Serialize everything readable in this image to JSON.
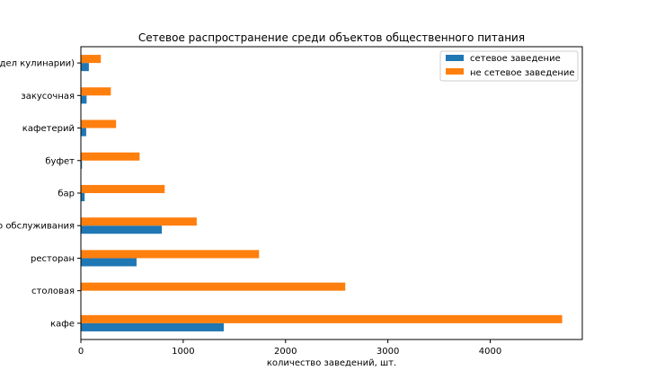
{
  "chart_data": {
    "type": "bar",
    "orientation": "horizontal",
    "title": "Сетевое распространение среди объектов общественного питания",
    "xlabel": "количество заведений, шт.",
    "ylabel": "",
    "categories": [
      "кафе",
      "столовая",
      "ресторан",
      "предприятие быстрого обслуживания",
      "бар",
      "буфет",
      "кафетерий",
      "закусочная",
      "магазин (отдел кулинарии)"
    ],
    "series": [
      {
        "name": "сетевое заведение",
        "color": "#1f77b4",
        "values": [
          1396,
          3,
          544,
          791,
          37,
          11,
          52,
          56,
          78
        ]
      },
      {
        "name": "не сетевое заведение",
        "color": "#ff7f0e",
        "values": [
          4703,
          2584,
          1741,
          1132,
          819,
          574,
          344,
          293,
          195
        ]
      }
    ],
    "xlim": [
      0,
      4900
    ],
    "xticks": [
      0,
      1000,
      2000,
      3000,
      4000
    ],
    "grid": false,
    "legend_position": "top-right"
  }
}
